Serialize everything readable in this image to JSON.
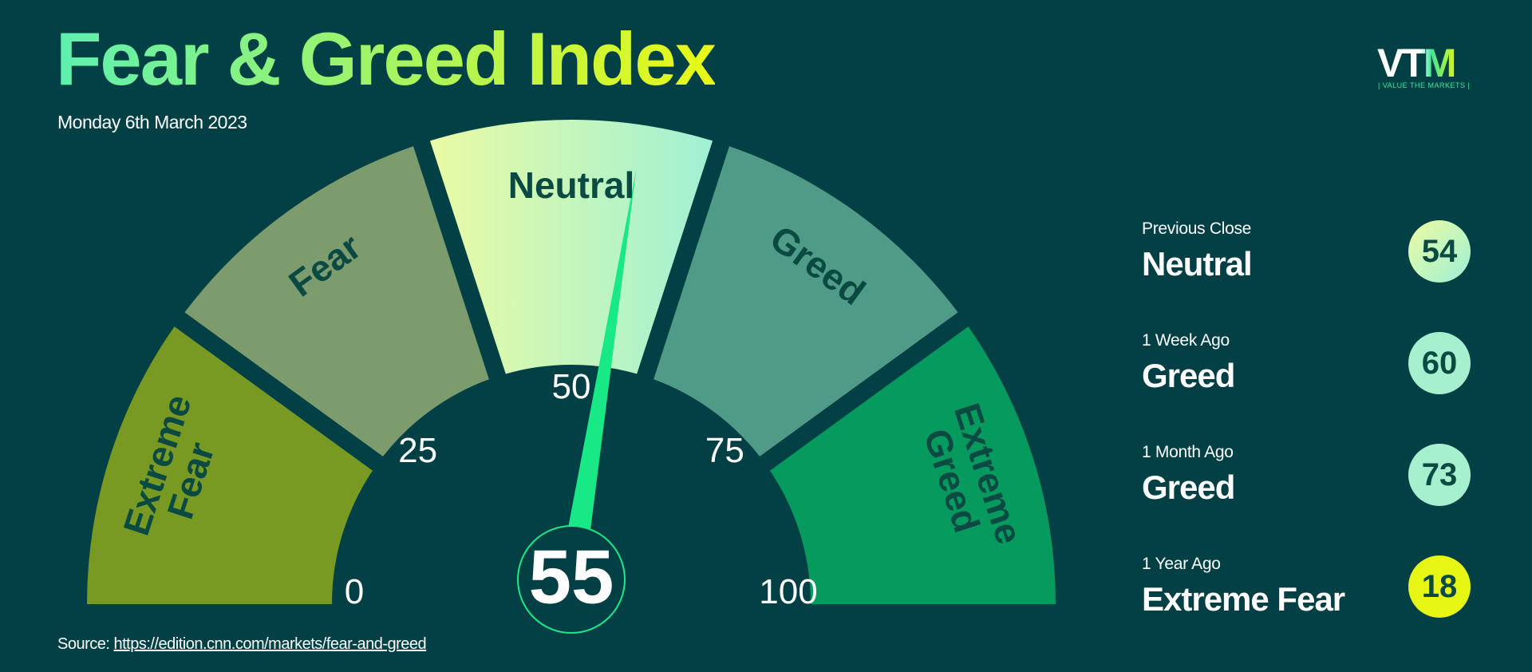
{
  "header": {
    "title": "Fear & Greed Index",
    "date": "Monday 6th March 2023",
    "logo": "VTM",
    "logo_tagline": "| VALUE THE MARKETS |"
  },
  "chart_data": {
    "type": "gauge",
    "value": 55,
    "xlim": [
      0,
      100
    ],
    "xticks": [
      0,
      25,
      50,
      75,
      100
    ],
    "bands": [
      {
        "name": "Extreme Fear",
        "color": "#789a22"
      },
      {
        "name": "Fear",
        "color": "#7d9c6e"
      },
      {
        "name": "Neutral",
        "color": [
          "#ecfba2",
          "#9ef0d6"
        ]
      },
      {
        "name": "Greed",
        "color": "#4f9b88"
      },
      {
        "name": "Extreme Greed",
        "color": "#079a5e"
      }
    ],
    "needle_color": "#19e887"
  },
  "history": [
    {
      "label": "Previous Close",
      "rating": "Neutral",
      "value": 54,
      "color": [
        "#ecfba2",
        "#9ef0d6"
      ]
    },
    {
      "label": "1 Week Ago",
      "rating": "Greed",
      "value": 60,
      "color": "#a6f0d0"
    },
    {
      "label": "1 Month Ago",
      "rating": "Greed",
      "value": 73,
      "color": "#a6f0d0"
    },
    {
      "label": "1 Year Ago",
      "rating": "Extreme Fear",
      "value": 18,
      "color": "#e6f514"
    }
  ],
  "source": {
    "label": "Source:",
    "url": "https://edition.cnn.com/markets/fear-and-greed"
  }
}
